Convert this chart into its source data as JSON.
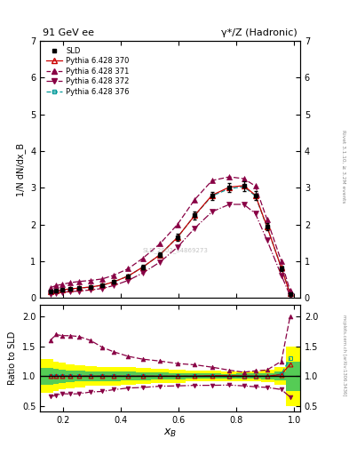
{
  "title_left": "91 GeV ee",
  "title_right": "γ*/Z (Hadronic)",
  "ylabel_main": "1/N dN/dx_B",
  "ylabel_ratio": "Ratio to SLD",
  "xlabel": "x_B",
  "right_label": "Rivet 3.1.10, ≥ 3.2M events",
  "watermark": "mcplots.cern.ch [arXiv:1306.3436]",
  "xB": [
    0.155,
    0.175,
    0.195,
    0.225,
    0.255,
    0.295,
    0.335,
    0.375,
    0.425,
    0.475,
    0.535,
    0.595,
    0.655,
    0.715,
    0.775,
    0.825,
    0.865,
    0.905,
    0.955,
    0.985
  ],
  "sld_y": [
    0.175,
    0.2,
    0.22,
    0.25,
    0.27,
    0.3,
    0.35,
    0.44,
    0.6,
    0.84,
    1.18,
    1.65,
    2.25,
    2.78,
    3.0,
    3.05,
    2.8,
    1.95,
    0.8,
    0.1
  ],
  "sld_err": [
    0.025,
    0.025,
    0.025,
    0.025,
    0.025,
    0.025,
    0.028,
    0.035,
    0.045,
    0.055,
    0.07,
    0.09,
    0.1,
    0.12,
    0.12,
    0.13,
    0.12,
    0.1,
    0.06,
    0.025
  ],
  "p370_y": [
    0.175,
    0.2,
    0.22,
    0.25,
    0.27,
    0.3,
    0.35,
    0.44,
    0.6,
    0.84,
    1.18,
    1.65,
    2.25,
    2.8,
    3.02,
    3.06,
    2.8,
    1.95,
    0.82,
    0.12
  ],
  "p371_y": [
    0.28,
    0.34,
    0.37,
    0.42,
    0.45,
    0.48,
    0.52,
    0.62,
    0.8,
    1.08,
    1.48,
    2.0,
    2.68,
    3.2,
    3.3,
    3.25,
    3.05,
    2.15,
    1.0,
    0.2
  ],
  "p372_y": [
    0.115,
    0.135,
    0.155,
    0.175,
    0.19,
    0.22,
    0.26,
    0.34,
    0.48,
    0.68,
    0.98,
    1.38,
    1.9,
    2.35,
    2.55,
    2.55,
    2.3,
    1.58,
    0.62,
    0.065
  ],
  "p376_y": [
    0.175,
    0.2,
    0.22,
    0.25,
    0.27,
    0.3,
    0.35,
    0.44,
    0.6,
    0.84,
    1.18,
    1.65,
    2.25,
    2.78,
    2.98,
    3.03,
    2.78,
    1.94,
    0.83,
    0.13
  ],
  "ylim_main": [
    0,
    7
  ],
  "ylim_ratio": [
    0.4,
    2.2
  ],
  "yticks_main": [
    0,
    1,
    2,
    3,
    4,
    5,
    6,
    7
  ],
  "yticks_ratio": [
    0.5,
    1.0,
    1.5,
    2.0
  ],
  "color_sld": "#000000",
  "color_370": "#cc0000",
  "color_371": "#880044",
  "color_372": "#880044",
  "color_376": "#009999",
  "band_yellow": "#ffff00",
  "band_green": "#55cc55",
  "figsize": [
    3.93,
    5.12
  ],
  "dpi": 100
}
